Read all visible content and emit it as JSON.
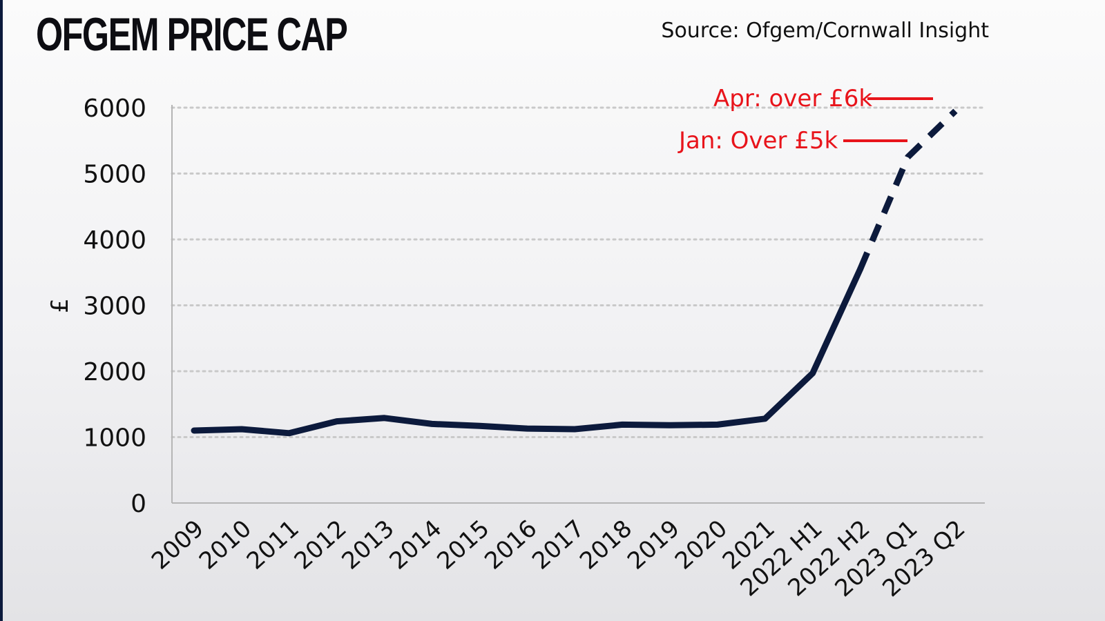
{
  "header": {
    "title": "OFGEM PRICE CAP",
    "source": "Source: Ofgem/Cornwall Insight"
  },
  "colors": {
    "line": "#0c1a3c",
    "annotation": "#e8141b",
    "grid": "#c9c9c9",
    "accent_edge": "#0c1a3c"
  },
  "chart_data": {
    "type": "line",
    "title": "OFGEM PRICE CAP",
    "xlabel": "",
    "ylabel": "£",
    "ylim": [
      0,
      6000
    ],
    "yticks": [
      0,
      1000,
      2000,
      3000,
      4000,
      5000,
      6000
    ],
    "grid": true,
    "grid_style": "dotted-horizontal",
    "categories": [
      "2009",
      "2010",
      "2011",
      "2012",
      "2013",
      "2014",
      "2015",
      "2016",
      "2017",
      "2018",
      "2019",
      "2020",
      "2021",
      "2022 H1",
      "2022 H2",
      "2023 Q1",
      "2023 Q2"
    ],
    "series": [
      {
        "values": [
          1100,
          1120,
          1060,
          1240,
          1290,
          1200,
          1170,
          1130,
          1120,
          1190,
          1180,
          1190,
          1280,
          1970,
          3550,
          5250,
          5950
        ],
        "style_segments": [
          {
            "from": "2009",
            "to": "2022 H2",
            "style": "solid"
          },
          {
            "from": "2022 H2",
            "to": "2023 Q2",
            "style": "dashed"
          }
        ]
      }
    ],
    "annotations": [
      {
        "text": "Apr: over £6k",
        "category": "2023 Q2"
      },
      {
        "text": "Jan: Over £5k",
        "category": "2023 Q1"
      }
    ]
  }
}
